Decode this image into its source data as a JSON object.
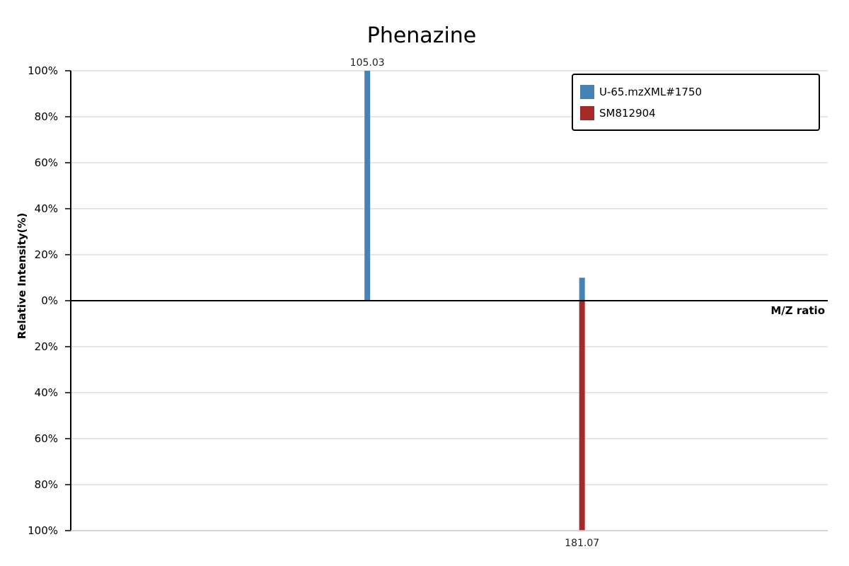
{
  "chart_data": {
    "type": "bar",
    "title": "Phenazine",
    "xlabel": "M/Z ratio",
    "ylabel": "Relative Intensity(%)",
    "ylim": [
      -100,
      100
    ],
    "x_range": [
      0,
      268.1
    ],
    "grid": true,
    "legend_position": "top-right",
    "y_ticks": [
      {
        "value": 100,
        "label": "100%"
      },
      {
        "value": 80,
        "label": "80%"
      },
      {
        "value": 60,
        "label": "60%"
      },
      {
        "value": 40,
        "label": "40%"
      },
      {
        "value": 20,
        "label": "20%"
      },
      {
        "value": 0,
        "label": "0%"
      },
      {
        "value": -20,
        "label": "20%"
      },
      {
        "value": -40,
        "label": "40%"
      },
      {
        "value": -60,
        "label": "60%"
      },
      {
        "value": -80,
        "label": "80%"
      },
      {
        "value": -100,
        "label": "100%"
      }
    ],
    "series": [
      {
        "name": "U-65.mzXML#1750",
        "color": "#4682B4",
        "direction": "up",
        "peaks": [
          {
            "mz": 105.03,
            "intensity": 100,
            "label": "105.03"
          },
          {
            "mz": 181.07,
            "intensity": 10,
            "label": ""
          }
        ]
      },
      {
        "name": "SM812904",
        "color": "#A52A2A",
        "direction": "down",
        "peaks": [
          {
            "mz": 181.07,
            "intensity": 100,
            "label": "181.07"
          }
        ]
      }
    ]
  }
}
